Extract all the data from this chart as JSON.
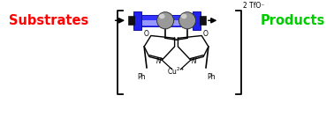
{
  "fig_width": 3.78,
  "fig_height": 1.34,
  "dpi": 100,
  "substrates_text": "Substrates",
  "substrates_color": "#FF0000",
  "products_text": "Products",
  "products_color": "#00CC00",
  "substrates_fontsize": 10.5,
  "products_fontsize": 10.5,
  "tfo_text": "2 TfO⁻",
  "tfo_fontsize": 5.5,
  "background_color": "#FFFFFF",
  "reactor_body_color": "#3333FF",
  "reactor_highlight_color": "#AAAAFF",
  "reactor_cap_color": "#2222EE",
  "connector_color": "#111111"
}
